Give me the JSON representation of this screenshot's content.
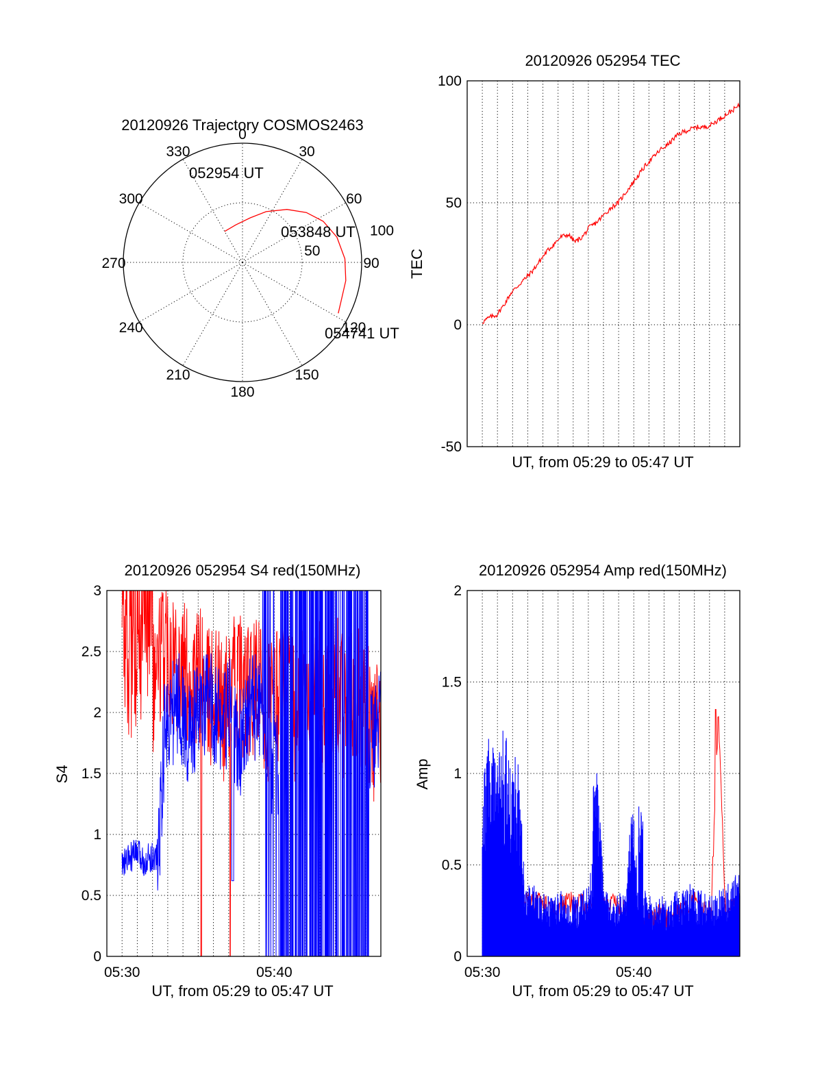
{
  "chart_data": [
    {
      "type": "polar",
      "title": "20120926 Trajectory COSMOS2463",
      "angle_labels": [
        "0",
        "30",
        "60",
        "90",
        "120",
        "150",
        "180",
        "210",
        "240",
        "270",
        "300",
        "330"
      ],
      "radius_labels": [
        "50",
        "100"
      ],
      "annotations": [
        "052954 UT",
        "053848 UT",
        "054741 UT"
      ],
      "series": [
        {
          "color": "#ff0000",
          "points": [
            [
              330,
              30
            ],
            [
              350,
              32
            ],
            [
              10,
              38
            ],
            [
              25,
              47
            ],
            [
              40,
              58
            ],
            [
              52,
              68
            ],
            [
              63,
              76
            ],
            [
              75,
              82
            ],
            [
              88,
              86
            ],
            [
              100,
              88
            ],
            [
              112,
              89
            ],
            [
              118,
              91
            ]
          ]
        }
      ]
    },
    {
      "type": "line",
      "title": "20120926 052954 TEC",
      "xlabel": "UT, from 05:29 to 05:47 UT",
      "ylabel": "TEC",
      "xlim": [
        0,
        18
      ],
      "ylim": [
        -50,
        100
      ],
      "yticks": [
        "-50",
        "0",
        "50",
        "100"
      ],
      "series": [
        {
          "color": "#ff0000",
          "x": [
            0.0,
            0.5,
            1.0,
            1.5,
            2.0,
            2.5,
            3.0,
            3.5,
            4.0,
            4.5,
            5.0,
            5.5,
            6.0,
            6.5,
            7.0,
            7.5,
            8.0,
            8.5,
            9.0,
            9.5,
            10.0,
            10.5,
            11.0,
            11.5,
            12.0,
            12.5,
            13.0,
            13.5,
            14.0,
            14.5,
            15.0,
            15.5,
            16.0,
            16.5,
            17.0,
            17.5,
            18.0
          ],
          "y": [
            1,
            3,
            4,
            8,
            13,
            16,
            19,
            22,
            26,
            30,
            33,
            36,
            37,
            34,
            36,
            40,
            42,
            45,
            48,
            50,
            54,
            58,
            62,
            66,
            69,
            72,
            74,
            77,
            79,
            80,
            81,
            81,
            82,
            84,
            86,
            88,
            90
          ]
        }
      ]
    },
    {
      "type": "line",
      "title": "20120926 052954 S4 red(150MHz)",
      "xlabel": "UT, from 05:29 to 05:47 UT",
      "ylabel": "S4",
      "xlim": [
        0,
        18
      ],
      "ylim": [
        0,
        3
      ],
      "xticks": [
        "05:30",
        "05:40"
      ],
      "yticks": [
        "0",
        "0.5",
        "1",
        "1.5",
        "2",
        "2.5",
        "3"
      ],
      "series": [
        {
          "color": "#ff0000",
          "x": [
            0.0,
            0.5,
            1.0,
            1.5,
            2.0,
            2.5,
            3.0,
            3.5,
            4.0,
            4.5,
            5.0,
            5.5,
            6.0,
            6.5,
            7.0,
            7.5,
            8.0,
            8.5,
            9.0,
            9.5,
            10.0,
            10.5,
            11.0,
            11.5,
            12.0,
            12.5,
            13.0,
            13.5,
            14.0,
            14.5,
            15.0,
            15.5,
            16.0,
            16.5,
            17.0,
            17.5,
            18.0
          ],
          "y": [
            2.6,
            2.4,
            2.3,
            2.5,
            2.2,
            2.4,
            2.6,
            2.5,
            2.4,
            2.3,
            2.2,
            2.3,
            2.1,
            2.2,
            2.0,
            2.1,
            2.3,
            2.2,
            2.1,
            2.2,
            2.0,
            2.1,
            2.2,
            2.1,
            2.0,
            2.2,
            2.1,
            2.3,
            2.0,
            2.1,
            2.2,
            2.0,
            2.1,
            2.2,
            2.0,
            1.8,
            1.9
          ]
        },
        {
          "color": "#0000ff",
          "x": [
            0.0,
            0.5,
            1.0,
            1.5,
            2.0,
            2.5,
            3.0,
            3.5,
            4.0,
            4.5,
            5.0,
            5.5,
            6.0,
            6.5,
            7.0,
            7.5,
            8.0,
            8.5,
            9.0,
            9.5,
            10.0,
            10.5,
            11.0,
            11.5,
            12.0,
            12.5,
            13.0,
            13.5,
            14.0,
            14.5,
            15.0,
            15.5,
            16.0,
            16.5,
            17.0,
            17.5,
            18.0
          ],
          "y": [
            0.75,
            0.8,
            0.85,
            0.78,
            0.82,
            0.8,
            1.9,
            2.0,
            2.1,
            1.8,
            1.9,
            2.0,
            2.1,
            2.0,
            1.9,
            2.0,
            1.7,
            1.8,
            2.1,
            2.0,
            1.9,
            1.5,
            1.6,
            1.5,
            1.8,
            2.0,
            1.5,
            1.6,
            1.7,
            1.8,
            1.5,
            1.7,
            1.9,
            1.6,
            1.7,
            1.8,
            2.0
          ]
        }
      ]
    },
    {
      "type": "line",
      "title": "20120926 052954 Amp red(150MHz)",
      "xlabel": "UT, from 05:29 to 05:47 UT",
      "ylabel": "Amp",
      "xlim": [
        0,
        18
      ],
      "ylim": [
        0,
        2
      ],
      "xticks": [
        "05:30",
        "05:40"
      ],
      "yticks": [
        "0",
        "0.5",
        "1",
        "1.5",
        "2"
      ],
      "series": [
        {
          "color": "#ff0000",
          "x": [
            0,
            1,
            2,
            3,
            4,
            5,
            6,
            7,
            8,
            9,
            10,
            11,
            12,
            12.5,
            13,
            14,
            15,
            16,
            16.5,
            17,
            18
          ],
          "y": [
            0.3,
            0.3,
            0.3,
            0.3,
            0.3,
            0.25,
            0.3,
            0.28,
            0.25,
            0.3,
            0.25,
            0.2,
            0.2,
            0.25,
            0.2,
            0.25,
            0.3,
            0.25,
            1.35,
            0.25,
            0.3
          ]
        },
        {
          "color": "#0000ff",
          "x": [
            0.0,
            0.5,
            1.0,
            1.5,
            2.0,
            2.5,
            3.0,
            3.5,
            4.0,
            4.5,
            5.0,
            5.5,
            6.0,
            6.5,
            7.0,
            7.5,
            8.0,
            8.5,
            9.0,
            9.5,
            10.0,
            10.5,
            11.0,
            11.5,
            12.0,
            12.5,
            13.0,
            13.5,
            14.0,
            14.5,
            15.0,
            15.5,
            16.0,
            16.5,
            17.0,
            17.5,
            18.0
          ],
          "y": [
            0.8,
            1.05,
            0.9,
            1.1,
            0.85,
            0.95,
            0.3,
            0.35,
            0.28,
            0.3,
            0.27,
            0.3,
            0.25,
            0.28,
            0.3,
            0.32,
            0.9,
            0.35,
            0.25,
            0.3,
            0.28,
            0.75,
            0.3,
            0.3,
            0.25,
            0.28,
            0.25,
            0.3,
            0.3,
            0.35,
            0.3,
            0.3,
            0.28,
            0.3,
            0.32,
            0.35,
            0.4
          ]
        }
      ]
    }
  ]
}
